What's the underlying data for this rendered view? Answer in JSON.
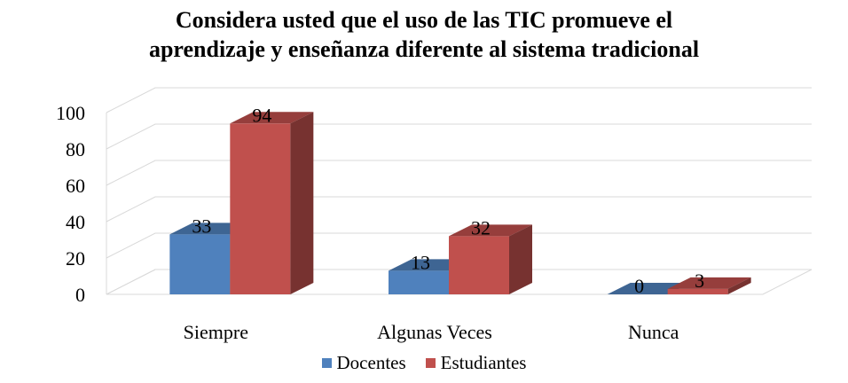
{
  "chart_data": {
    "type": "bar",
    "title_lines": [
      "Considera usted que el uso de las TIC promueve el",
      "aprendizaje y enseñanza diferente al sistema tradicional"
    ],
    "categories": [
      "Siempre",
      "Algunas Veces",
      "Nunca"
    ],
    "series": [
      {
        "name": "Docentes",
        "values": [
          33,
          13,
          0
        ],
        "color": "#4f81bd"
      },
      {
        "name": "Estudiantes",
        "values": [
          94,
          32,
          3
        ],
        "color": "#c0504d"
      }
    ],
    "ylim": [
      0,
      100
    ],
    "yticks": [
      0,
      20,
      40,
      60,
      80,
      100
    ],
    "grid": true,
    "legend_position": "bottom",
    "style": "3d-clustered-column"
  }
}
